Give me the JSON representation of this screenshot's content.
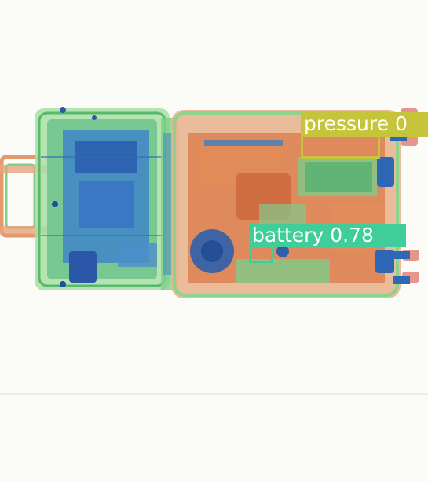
{
  "image": {
    "subject": "x-ray-scan-of-luggage",
    "background_color": "#fbfbf8"
  },
  "detections": [
    {
      "label": "pressure",
      "score": "0",
      "color": "#c6c43a"
    },
    {
      "label": "battery",
      "score": "0.78",
      "color": "#3fce9a"
    }
  ]
}
